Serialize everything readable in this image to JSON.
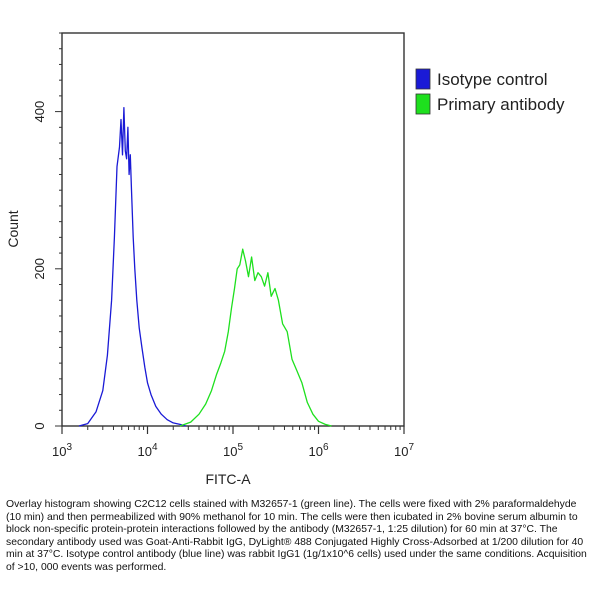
{
  "chart_data": {
    "type": "line",
    "title": "",
    "xlabel": "FITC-A",
    "ylabel": "Count",
    "xscale": "log",
    "xlim": [
      1000,
      10000000
    ],
    "ylim": [
      0,
      500
    ],
    "x_ticks": [
      {
        "base": "10",
        "exp": "3",
        "value": 1000
      },
      {
        "base": "10",
        "exp": "4",
        "value": 10000
      },
      {
        "base": "10",
        "exp": "5",
        "value": 100000
      },
      {
        "base": "10",
        "exp": "6",
        "value": 1000000
      },
      {
        "base": "10",
        "exp": "7",
        "value": 10000000
      }
    ],
    "y_ticks": [
      {
        "label": "0",
        "value": 0
      },
      {
        "label": "200",
        "value": 200
      },
      {
        "label": "400",
        "value": 400
      }
    ],
    "grid": false,
    "legend_position": "top-right",
    "series": [
      {
        "name": "Isotype control",
        "color": "#1a1ad6",
        "x": [
          1580,
          2000,
          2500,
          3000,
          3400,
          3800,
          4100,
          4400,
          4700,
          4900,
          5100,
          5300,
          5500,
          5700,
          5900,
          6100,
          6300,
          6500,
          6800,
          7100,
          7500,
          8000,
          8600,
          9300,
          10000,
          11000,
          12500,
          14500,
          17000,
          20000,
          24000,
          28000
        ],
        "y": [
          0,
          3,
          18,
          45,
          90,
          160,
          240,
          330,
          355,
          390,
          345,
          405,
          350,
          340,
          380,
          320,
          345,
          300,
          240,
          200,
          160,
          125,
          100,
          75,
          55,
          40,
          25,
          15,
          8,
          4,
          2,
          0
        ]
      },
      {
        "name": "Primary antibody",
        "color": "#1ee01e",
        "x": [
          24000,
          32000,
          40000,
          48000,
          56000,
          64000,
          72000,
          80000,
          88000,
          96000,
          104000,
          112000,
          120000,
          130000,
          140000,
          152000,
          165000,
          180000,
          196000,
          214000,
          234000,
          256000,
          280000,
          310000,
          340000,
          380000,
          430000,
          490000,
          560000,
          640000,
          740000,
          860000,
          1000000,
          1200000,
          1420000
        ],
        "y": [
          0,
          5,
          15,
          28,
          45,
          65,
          80,
          95,
          120,
          150,
          175,
          200,
          205,
          225,
          210,
          190,
          215,
          185,
          195,
          190,
          178,
          195,
          165,
          175,
          160,
          130,
          120,
          85,
          70,
          55,
          30,
          15,
          6,
          2,
          0
        ]
      }
    ]
  },
  "caption": "Overlay histogram showing C2C12 cells stained with M32657-1 (green line). The cells were fixed with 2% paraformaldehyde (10 min) and then permeabilized with 90% methanol for 10 min. The cells were then icubated in 2% bovine serum albumin to block non-specific protein-protein interactions followed by the antibody (M32657-1, 1:25 dilution) for 60 min at 37°C. The secondary antibody used was Goat-Anti-Rabbit IgG, DyLight® 488 Conjugated Highly Cross-Adsorbed at 1/200 dilution for 40 min at 37°C. Isotype control antibody (blue line) was rabbit IgG1 (1g/1x10^6 cells) used under the same conditions. Acquisition of >10, 000 events was performed."
}
